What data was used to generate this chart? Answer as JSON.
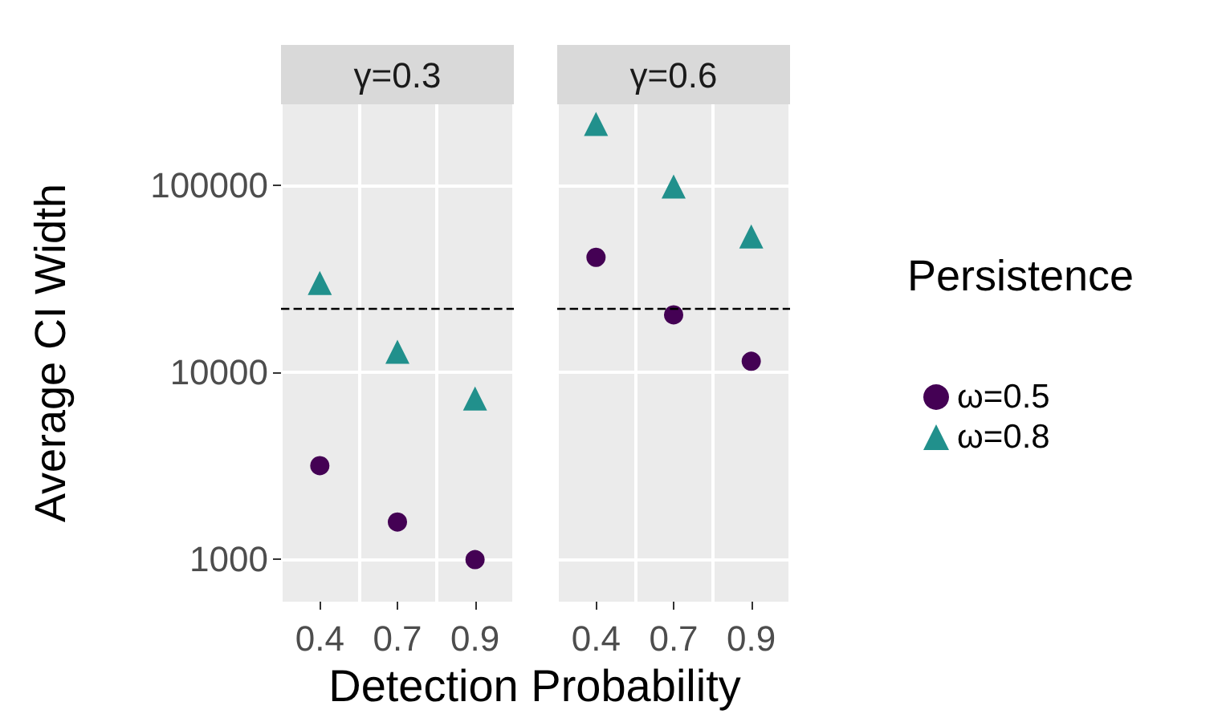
{
  "chart_data": [
    {
      "type": "scatter",
      "title": "γ=0.3",
      "ylabel": "Average CI Width",
      "xlabel": "Detection Probability",
      "categories": [
        "0.4",
        "0.7",
        "0.9"
      ],
      "log": "y",
      "ylim": [
        590,
        270000
      ],
      "yticks": [
        1000,
        10000,
        100000
      ],
      "grid": true,
      "series": [
        {
          "color": "#440154",
          "marker": "circle",
          "values": [
            3150,
            1575,
            990
          ]
        },
        {
          "color": "#21908c",
          "marker": "triangle",
          "values": [
            29900,
            12800,
            7200
          ]
        }
      ],
      "ref_lines": [
        {
          "axis": "y",
          "value": 21800,
          "color": "#000000",
          "line_style": "dashed"
        }
      ]
    },
    {
      "type": "scatter",
      "title": "γ=0.6",
      "categories": [
        "0.4",
        "0.7",
        "0.9"
      ],
      "log": "y",
      "ylim": [
        590,
        270000
      ],
      "yticks": [
        1000,
        10000,
        100000
      ],
      "grid": true,
      "tick_labels": "x",
      "legend": "right",
      "legend_title": "Persistence",
      "series": [
        {
          "name": "ω=0.5",
          "color": "#440154",
          "marker": "circle",
          "values": [
            41000,
            20200,
            11400
          ]
        },
        {
          "name": "ω=0.8",
          "color": "#21908c",
          "marker": "triangle",
          "values": [
            212000,
            98000,
            53000
          ]
        }
      ],
      "ref_lines": [
        {
          "axis": "y",
          "value": 21800,
          "color": "#000000",
          "line_style": "dashed"
        }
      ]
    }
  ]
}
